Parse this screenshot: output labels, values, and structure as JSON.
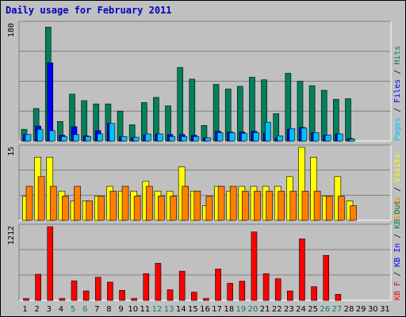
{
  "chart_data": [
    {
      "type": "bar",
      "panel": "top",
      "title": "Daily usage for February 2011",
      "ymax_label": "180",
      "ylim": [
        0,
        180
      ],
      "categories": [
        "1",
        "2",
        "3",
        "4",
        "5",
        "6",
        "7",
        "8",
        "9",
        "10",
        "11",
        "12",
        "13",
        "14",
        "15",
        "16",
        "17",
        "18",
        "19",
        "20",
        "21",
        "22",
        "23",
        "24",
        "25",
        "26",
        "27",
        "28",
        "29",
        "30",
        "31"
      ],
      "series": [
        {
          "name": "Hits",
          "color": "#00805c",
          "values": [
            18,
            50,
            175,
            30,
            72,
            62,
            57,
            57,
            46,
            25,
            59,
            67,
            54,
            113,
            95,
            24,
            87,
            80,
            84,
            98,
            94,
            42,
            104,
            92,
            85,
            78,
            64,
            65,
            0,
            0,
            0
          ]
        },
        {
          "name": "Files",
          "color": "#0000ff",
          "values": [
            10,
            23,
            120,
            9,
            22,
            8,
            16,
            27,
            7,
            5,
            9,
            11,
            10,
            10,
            9,
            5,
            15,
            14,
            14,
            15,
            12,
            5,
            18,
            21,
            13,
            9,
            11,
            4,
            0,
            0,
            0
          ]
        },
        {
          "name": "Pages",
          "color": "#00c0ff",
          "values": [
            10,
            18,
            16,
            7,
            10,
            7,
            11,
            27,
            7,
            6,
            11,
            11,
            7,
            7,
            7,
            5,
            13,
            13,
            12,
            13,
            29,
            8,
            19,
            20,
            13,
            9,
            11,
            3,
            0,
            0,
            0
          ]
        }
      ]
    },
    {
      "type": "bar",
      "panel": "middle",
      "ymax_label": "15",
      "ylim": [
        0,
        15
      ],
      "categories": [
        "1",
        "2",
        "3",
        "4",
        "5",
        "6",
        "7",
        "8",
        "9",
        "10",
        "11",
        "12",
        "13",
        "14",
        "15",
        "16",
        "17",
        "18",
        "19",
        "20",
        "21",
        "22",
        "23",
        "24",
        "25",
        "26",
        "27",
        "28",
        "29",
        "30",
        "31"
      ],
      "series": [
        {
          "name": "Visits",
          "color": "#ffff00",
          "values": [
            5,
            13,
            13,
            6,
            4,
            4,
            5,
            7,
            6,
            6,
            8,
            6,
            6,
            11,
            6,
            3,
            7,
            6,
            7,
            7,
            7,
            7,
            9,
            15,
            13,
            5,
            9,
            4,
            0,
            0,
            0
          ]
        },
        {
          "name": "Sites",
          "color": "#ff8000",
          "values": [
            7,
            9,
            7,
            5,
            7,
            4,
            5,
            6,
            7,
            5,
            7,
            5,
            5,
            7,
            6,
            5,
            7,
            7,
            6,
            6,
            6,
            6,
            6,
            6,
            6,
            5,
            5,
            3,
            0,
            0,
            0
          ]
        }
      ]
    },
    {
      "type": "bar",
      "panel": "bottom",
      "ymax_label": "1212",
      "ylim": [
        0,
        1212
      ],
      "categories": [
        "1",
        "2",
        "3",
        "4",
        "5",
        "6",
        "7",
        "8",
        "9",
        "10",
        "11",
        "12",
        "13",
        "14",
        "15",
        "16",
        "17",
        "18",
        "19",
        "20",
        "21",
        "22",
        "23",
        "24",
        "25",
        "26",
        "27",
        "28",
        "29",
        "30",
        "31"
      ],
      "series": [
        {
          "name": "KBytes In",
          "color": "#0000ff",
          "values": [
            0,
            0,
            0,
            0,
            0,
            0,
            0,
            0,
            0,
            0,
            0,
            0,
            0,
            0,
            0,
            0,
            0,
            0,
            0,
            0,
            0,
            0,
            0,
            0,
            0,
            0,
            0,
            0,
            0,
            0,
            0
          ]
        },
        {
          "name": "KBytes Out",
          "color": "#00805c",
          "values": [
            0,
            0,
            0,
            0,
            0,
            0,
            0,
            0,
            0,
            0,
            0,
            0,
            0,
            0,
            0,
            0,
            0,
            0,
            0,
            0,
            0,
            0,
            0,
            0,
            0,
            0,
            0,
            0,
            0,
            0,
            0
          ]
        },
        {
          "name": "KBytes F",
          "color": "#ff0000",
          "values": [
            30,
            430,
            1212,
            30,
            320,
            155,
            380,
            300,
            165,
            30,
            440,
            610,
            175,
            480,
            135,
            30,
            515,
            280,
            315,
            1125,
            440,
            355,
            155,
            1010,
            225,
            740,
            100,
            0,
            0,
            0,
            0
          ]
        }
      ]
    }
  ],
  "day_colors": [
    "#000000",
    "#000000",
    "#000000",
    "#000000",
    "#00805c",
    "#00805c",
    "#000000",
    "#000000",
    "#000000",
    "#000000",
    "#000000",
    "#00805c",
    "#00805c",
    "#000000",
    "#000000",
    "#000000",
    "#000000",
    "#000000",
    "#00805c",
    "#00805c",
    "#000000",
    "#000000",
    "#000000",
    "#000000",
    "#000000",
    "#00805c",
    "#00805c",
    "#000000",
    "#000000",
    "#000000",
    "#000000"
  ],
  "legend": {
    "top": [
      {
        "text": "Pages",
        "color": "#00c0ff"
      },
      {
        "text": " / ",
        "color": "#000000"
      },
      {
        "text": "Files",
        "color": "#0000ff"
      },
      {
        "text": " / ",
        "color": "#000000"
      },
      {
        "text": "Hits",
        "color": "#00805c"
      }
    ],
    "middle": [
      {
        "text": "Sites",
        "color": "#ff8000"
      },
      {
        "text": " / ",
        "color": "#000000"
      },
      {
        "text": "Visits",
        "color": "#ffff00"
      }
    ],
    "bottom": [
      {
        "text": "KB F",
        "color": "#ff0000"
      },
      {
        "text": " / ",
        "color": "#000000"
      },
      {
        "text": "KB In",
        "color": "#0000ff"
      },
      {
        "text": " / ",
        "color": "#000000"
      },
      {
        "text": "KB Out",
        "color": "#00805c"
      }
    ]
  }
}
